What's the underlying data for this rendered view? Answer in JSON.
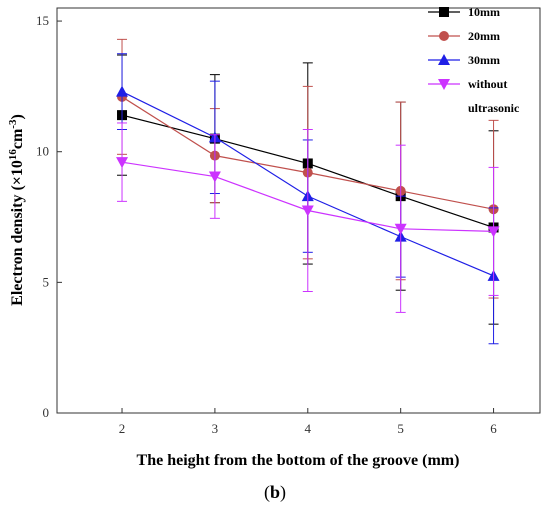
{
  "caption": {
    "open": "(",
    "letter": "b",
    "close": ")"
  },
  "chart_data": {
    "type": "line",
    "xlabel": "The height from the bottom of the groove (mm)",
    "ylabel_main": "Electron density (×10",
    "ylabel_exp1": "16",
    "ylabel_mid": "cm",
    "ylabel_exp2": "-3",
    "ylabel_close": ")",
    "x": [
      2,
      3,
      4,
      5,
      6
    ],
    "xlim": [
      1.3,
      6.5
    ],
    "ylim": [
      0,
      15.5
    ],
    "xticks": [
      2,
      3,
      4,
      5,
      6
    ],
    "yticks": [
      0,
      5,
      10,
      15
    ],
    "grid": false,
    "legend_position": "top-right",
    "series": [
      {
        "name": "10mm",
        "color": "#000000",
        "marker": "square",
        "values": [
          11.4,
          10.5,
          9.55,
          8.3,
          7.1
        ],
        "err": [
          2.3,
          2.45,
          3.85,
          3.6,
          3.7
        ]
      },
      {
        "name": "20mm",
        "color": "#c0504d",
        "marker": "circle",
        "values": [
          12.1,
          9.85,
          9.2,
          8.5,
          7.8
        ],
        "err": [
          2.2,
          1.8,
          3.3,
          3.4,
          3.4
        ]
      },
      {
        "name": "30mm",
        "color": "#1f1fe6",
        "marker": "triangle-up",
        "values": [
          12.3,
          10.55,
          8.3,
          6.75,
          5.25
        ],
        "err": [
          1.45,
          2.15,
          2.15,
          1.55,
          2.6
        ]
      },
      {
        "name": "without",
        "name_line2": "ultrasonic",
        "color": "#cc33ff",
        "marker": "triangle-down",
        "values": [
          9.6,
          9.05,
          7.75,
          7.05,
          6.95
        ],
        "err": [
          1.5,
          1.6,
          3.1,
          3.2,
          2.45
        ]
      }
    ]
  }
}
